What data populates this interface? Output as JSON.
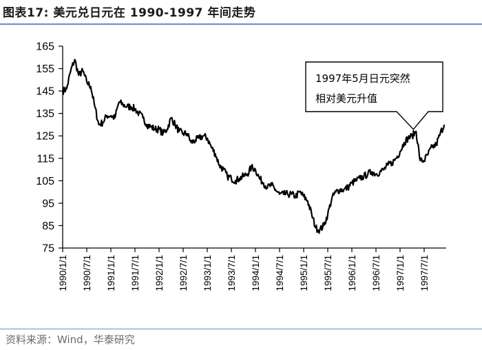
{
  "title": "图表17:  美元兑日元在 1990-1997 年间走势",
  "source": "资料来源：Wind，华泰研究",
  "colors": {
    "line": "#000000",
    "rule": "#6f8fb8",
    "source_text": "#6b6b6b"
  },
  "chart_data": {
    "type": "line",
    "title": "",
    "xlabel": "",
    "ylabel": "",
    "ylim": [
      75,
      165
    ],
    "yticks": [
      165,
      155,
      145,
      135,
      125,
      115,
      105,
      95,
      85,
      75
    ],
    "xticks": [
      "1990/1/1",
      "1990/7/1",
      "1991/1/1",
      "1991/7/1",
      "1992/1/1",
      "1992/7/1",
      "1993/1/1",
      "1993/7/1",
      "1994/1/1",
      "1994/7/1",
      "1995/1/1",
      "1995/7/1",
      "1996/1/1",
      "1996/7/1",
      "1997/1/1",
      "1997/7/1"
    ],
    "grid": false,
    "annotation": {
      "lines": [
        "1997年5月日元突然",
        "相对美元升值"
      ],
      "target_date": "1997/5/1",
      "target_value": 127
    },
    "series": [
      {
        "x": [
          "1990/1/1",
          "1990/2/1",
          "1990/3/1",
          "1990/4/1",
          "1990/5/1",
          "1990/6/1",
          "1990/7/1",
          "1990/8/1",
          "1990/9/1",
          "1990/10/1",
          "1990/11/1",
          "1990/12/1",
          "1991/1/1",
          "1991/2/1",
          "1991/3/1",
          "1991/4/1",
          "1991/5/1",
          "1991/6/1",
          "1991/7/1",
          "1991/8/1",
          "1991/9/1",
          "1991/10/1",
          "1991/11/1",
          "1991/12/1",
          "1992/1/1",
          "1992/2/1",
          "1992/3/1",
          "1992/4/1",
          "1992/5/1",
          "1992/6/1",
          "1992/7/1",
          "1992/8/1",
          "1992/9/1",
          "1992/10/1",
          "1992/11/1",
          "1992/12/1",
          "1993/1/1",
          "1993/2/1",
          "1993/3/1",
          "1993/4/1",
          "1993/5/1",
          "1993/6/1",
          "1993/7/1",
          "1993/8/1",
          "1993/9/1",
          "1993/10/1",
          "1993/11/1",
          "1993/12/1",
          "1994/1/1",
          "1994/2/1",
          "1994/3/1",
          "1994/4/1",
          "1994/5/1",
          "1994/6/1",
          "1994/7/1",
          "1994/8/1",
          "1994/9/1",
          "1994/10/1",
          "1994/11/1",
          "1994/12/1",
          "1995/1/1",
          "1995/2/1",
          "1995/3/1",
          "1995/4/1",
          "1995/5/1",
          "1995/6/1",
          "1995/7/1",
          "1995/8/1",
          "1995/9/1",
          "1995/10/1",
          "1995/11/1",
          "1995/12/1",
          "1996/1/1",
          "1996/2/1",
          "1996/3/1",
          "1996/4/1",
          "1996/5/1",
          "1996/6/1",
          "1996/7/1",
          "1996/8/1",
          "1996/9/1",
          "1996/10/1",
          "1996/11/1",
          "1996/12/1",
          "1997/1/1",
          "1997/2/1",
          "1997/3/1",
          "1997/4/1",
          "1997/5/1",
          "1997/6/1",
          "1997/7/1",
          "1997/8/1",
          "1997/9/1",
          "1997/10/1",
          "1997/11/1",
          "1997/12/1"
        ],
        "values": [
          145,
          146,
          154,
          159,
          152,
          154,
          149,
          147,
          138,
          130,
          131,
          134,
          134,
          133,
          140,
          139,
          138,
          138,
          137,
          135,
          133,
          130,
          129,
          128,
          128,
          126,
          128,
          133,
          130,
          127,
          126,
          126,
          122,
          123,
          124,
          125,
          124,
          120,
          117,
          112,
          110,
          107,
          106,
          105,
          106,
          107,
          108,
          111,
          110,
          106,
          104,
          102,
          103,
          101,
          99,
          99,
          99,
          99,
          98,
          100,
          98,
          96,
          90,
          84,
          83,
          85,
          90,
          97,
          100,
          101,
          101,
          102,
          104,
          105,
          106,
          107,
          108,
          109,
          108,
          109,
          110,
          112,
          113,
          115,
          118,
          122,
          124,
          125,
          127,
          114,
          114,
          117,
          120,
          121,
          126,
          130
        ]
      }
    ]
  }
}
